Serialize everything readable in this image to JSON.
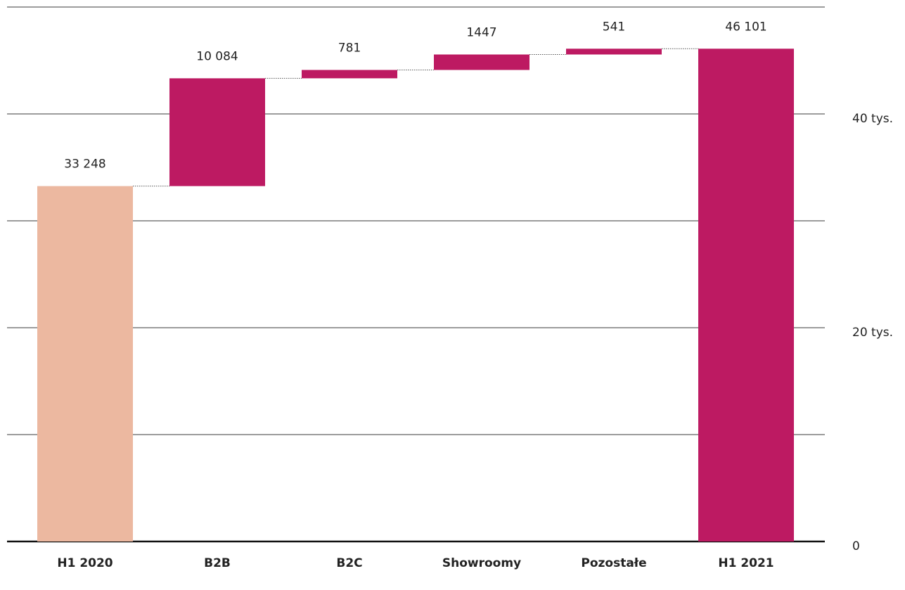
{
  "chart_data": {
    "type": "waterfall",
    "categories": [
      "H1 2020",
      "B2B",
      "B2C",
      "Showroomy",
      "Pozostałe",
      "H1 2021"
    ],
    "values": [
      33248,
      10084,
      781,
      1447,
      541,
      46101
    ],
    "value_labels": [
      "33 248",
      "10 084",
      "781",
      "1447",
      "541",
      "46 101"
    ],
    "kinds": [
      "total",
      "increment",
      "increment",
      "increment",
      "increment",
      "total"
    ],
    "yticks": [
      {
        "value": 0,
        "label": "0"
      },
      {
        "value": 20000,
        "label": "20 tys."
      },
      {
        "value": 40000,
        "label": "40 tys."
      }
    ],
    "gridlines": [
      10000,
      20000,
      30000,
      40000,
      50000
    ],
    "ylim": [
      0,
      50000
    ],
    "title": "",
    "xlabel": "",
    "ylabel": "",
    "colors": {
      "start_total": "#ecb8a0",
      "bars": "#bd1a62"
    }
  }
}
